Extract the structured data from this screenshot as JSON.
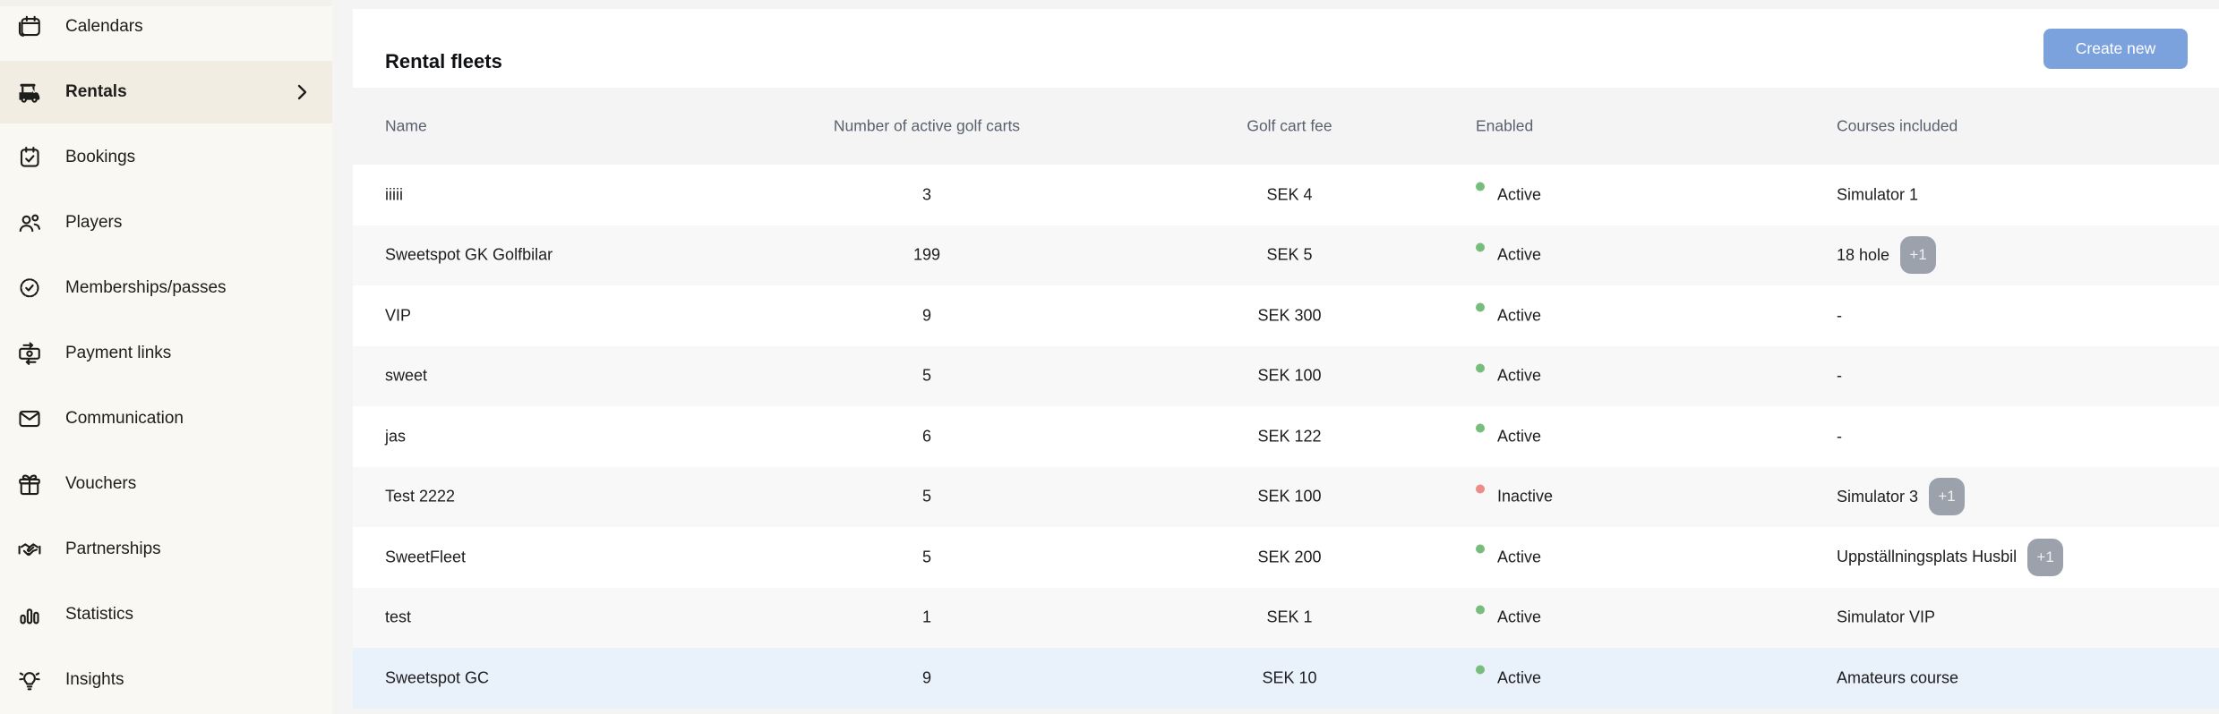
{
  "sidebar": {
    "items": [
      {
        "id": "calendars",
        "label": "Calendars",
        "icon": "calendars-icon",
        "active": false
      },
      {
        "id": "rentals",
        "label": "Rentals",
        "icon": "golf-cart-icon",
        "active": true
      },
      {
        "id": "bookings",
        "label": "Bookings",
        "icon": "bookings-calendar-check-icon",
        "active": false
      },
      {
        "id": "players",
        "label": "Players",
        "icon": "players-group-icon",
        "active": false
      },
      {
        "id": "memberships-passes",
        "label": "Memberships/passes",
        "icon": "membership-badge-check-icon",
        "active": false
      },
      {
        "id": "payment-links",
        "label": "Payment links",
        "icon": "payment-banknote-icon",
        "active": false
      },
      {
        "id": "communication",
        "label": "Communication",
        "icon": "communication-envelope-icon",
        "active": false
      },
      {
        "id": "vouchers",
        "label": "Vouchers",
        "icon": "voucher-gift-icon",
        "active": false
      },
      {
        "id": "partnerships",
        "label": "Partnerships",
        "icon": "partnership-handshake-icon",
        "active": false
      },
      {
        "id": "statistics",
        "label": "Statistics",
        "icon": "statistics-bar-chart-icon",
        "active": false
      },
      {
        "id": "insights",
        "label": "Insights",
        "icon": "insights-lightbulb-icon",
        "active": false
      }
    ]
  },
  "header": {
    "title": "Rental fleets",
    "create_button_label": "Create new"
  },
  "table": {
    "columns": [
      "Name",
      "Number of active golf carts",
      "Golf cart fee",
      "Enabled",
      "Courses included"
    ],
    "rows": [
      {
        "name": "iiiii",
        "active_golf_carts": "3",
        "golf_cart_fee": "SEK 4",
        "status": "Active",
        "courses": "Simulator 1",
        "extra_badge": "",
        "highlighted": false
      },
      {
        "name": "Sweetspot GK Golfbilar",
        "active_golf_carts": "199",
        "golf_cart_fee": "SEK 5",
        "status": "Active",
        "courses": "18 hole",
        "extra_badge": "+1",
        "highlighted": false
      },
      {
        "name": "VIP",
        "active_golf_carts": "9",
        "golf_cart_fee": "SEK 300",
        "status": "Active",
        "courses": "-",
        "extra_badge": "",
        "highlighted": false
      },
      {
        "name": "sweet",
        "active_golf_carts": "5",
        "golf_cart_fee": "SEK 100",
        "status": "Active",
        "courses": "-",
        "extra_badge": "",
        "highlighted": false
      },
      {
        "name": "jas",
        "active_golf_carts": "6",
        "golf_cart_fee": "SEK 122",
        "status": "Active",
        "courses": "-",
        "extra_badge": "",
        "highlighted": false
      },
      {
        "name": "Test 2222",
        "active_golf_carts": "5",
        "golf_cart_fee": "SEK 100",
        "status": "Inactive",
        "courses": "Simulator 3",
        "extra_badge": "+1",
        "highlighted": false
      },
      {
        "name": "SweetFleet",
        "active_golf_carts": "5",
        "golf_cart_fee": "SEK 200",
        "status": "Active",
        "courses": "Uppställningsplats Husbil",
        "extra_badge": "+1",
        "highlighted": false
      },
      {
        "name": "test",
        "active_golf_carts": "1",
        "golf_cart_fee": "SEK 1",
        "status": "Active",
        "courses": "Simulator VIP",
        "extra_badge": "",
        "highlighted": false
      },
      {
        "name": "Sweetspot GC",
        "active_golf_carts": "9",
        "golf_cart_fee": "SEK 10",
        "status": "Active",
        "courses": "Amateurs course",
        "extra_badge": "",
        "highlighted": true
      }
    ],
    "status_active_label": "Active",
    "status_inactive_label": "Inactive"
  },
  "colors": {
    "accent_button": "#7CA2DE",
    "active_dot": "#77BD7D",
    "inactive_dot": "#EC8B87",
    "row_highlight": "#E9F1FB",
    "badge_bg": "#9CA2AC",
    "sidebar_bg": "#FAF8F2",
    "sidebar_active_bg": "#F1EDE3"
  }
}
